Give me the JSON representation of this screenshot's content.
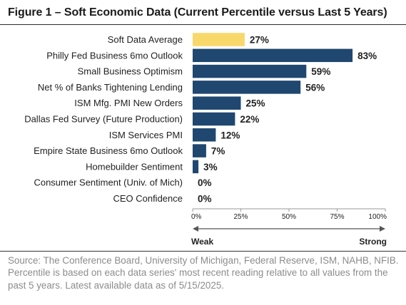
{
  "figure": {
    "title": "Figure 1 – Soft Economic Data (Current Percentile versus Last 5 Years)",
    "source_note": "Source: The Conference Board, University of Michigan, Federal Reserve, ISM, NAHB, NFIB. Percentile is based on each data series' most recent reading relative to all values from the past 5 years. Latest available data as of 5/15/2025."
  },
  "colors": {
    "highlight": "#F9D86B",
    "bar": "#1F4770",
    "text": "#222222",
    "axis": "#9a9a9a",
    "arrow": "#555555"
  },
  "chart_data": {
    "type": "bar",
    "orientation": "horizontal",
    "title": "Figure 1 – Soft Economic Data (Current Percentile versus Last 5 Years)",
    "categories": [
      "Soft Data Average",
      "Philly Fed Business 6mo Outlook",
      "Small Business Optimism",
      "Net % of Banks Tightening Lending",
      "ISM Mfg. PMI New Orders",
      "Dallas Fed Survey (Future Production)",
      "ISM Services PMI",
      "Empire State Business 6mo Outlook",
      "Homebuilder Sentiment",
      "Consumer Sentiment (Univ. of Mich)",
      "CEO Confidence"
    ],
    "values": [
      27,
      83,
      59,
      56,
      25,
      22,
      12,
      7,
      3,
      0,
      0
    ],
    "value_labels": [
      "27%",
      "83%",
      "59%",
      "56%",
      "25%",
      "22%",
      "12%",
      "7%",
      "3%",
      "0%",
      "0%"
    ],
    "highlighted_category": "Soft Data Average",
    "xlim": [
      0,
      100
    ],
    "xticks": [
      0,
      25,
      50,
      75,
      100
    ],
    "xtick_labels": [
      "0%",
      "25%",
      "50%",
      "75%",
      "100%"
    ],
    "xlabel": "",
    "ylabel": "",
    "grid": false,
    "legend": "none",
    "scale_labels": {
      "left": "Weak",
      "right": "Strong"
    }
  }
}
